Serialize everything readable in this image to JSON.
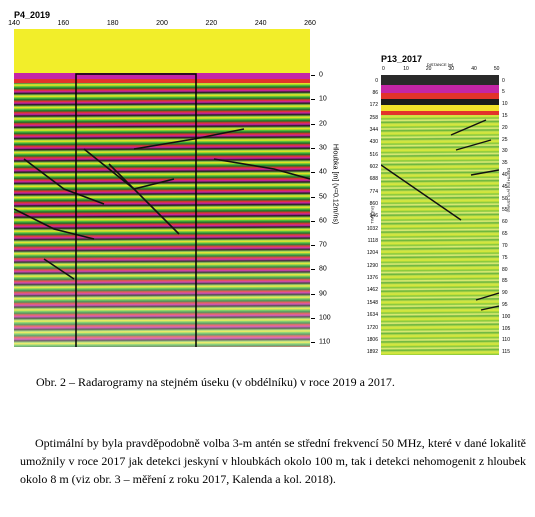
{
  "figure": {
    "left_panel": {
      "title": "P4_2019",
      "top_ticks": [
        "140",
        "160",
        "180",
        "200",
        "220",
        "240",
        "260"
      ],
      "depth_ticks": [
        "0",
        "10",
        "20",
        "30",
        "40",
        "50",
        "60",
        "70",
        "80",
        "90",
        "100",
        "110"
      ],
      "depth_axis_title": "Hloubka [m] (v=0.12m/ns)"
    },
    "right_panel": {
      "title": "P13_2017",
      "distance_label": "DISTANCE [m]",
      "top_ticks": [
        "0",
        "10",
        "20",
        "30",
        "40",
        "50"
      ],
      "time_ticks": [
        "0",
        "86",
        "172",
        "258",
        "344",
        "430",
        "516",
        "602",
        "688",
        "774",
        "860",
        "946",
        "1032",
        "1118",
        "1204",
        "1290",
        "1376",
        "1462",
        "1548",
        "1634",
        "1720",
        "1806",
        "1892"
      ],
      "depth_ticks": [
        "0",
        "5",
        "10",
        "15",
        "20",
        "25",
        "30",
        "35",
        "40",
        "45",
        "50",
        "55",
        "60",
        "65",
        "70",
        "75",
        "80",
        "85",
        "90",
        "95",
        "100",
        "105",
        "110",
        "115"
      ],
      "time_axis_title": "TIME [ns]",
      "depth_axis_title": "DEPTH [m] (v=0.12m/ns)"
    }
  },
  "caption": "Obr. 2 – Radarogramy na stejném úseku (v obdélníku) v roce 2019 a 2017.",
  "paragraph": "Optimální by byla pravděpodobně volba 3-m antén se střední frekvencí 50 MHz, které v dané lokalitě umožnily v roce 2017 jak detekci jeskyní v hloubkách okolo 100 m, tak i detekci nehomogenit z hloubek okolo 8 m (viz obr. 3 – měření z roku 2017, Kalenda a kol. 2018)."
}
